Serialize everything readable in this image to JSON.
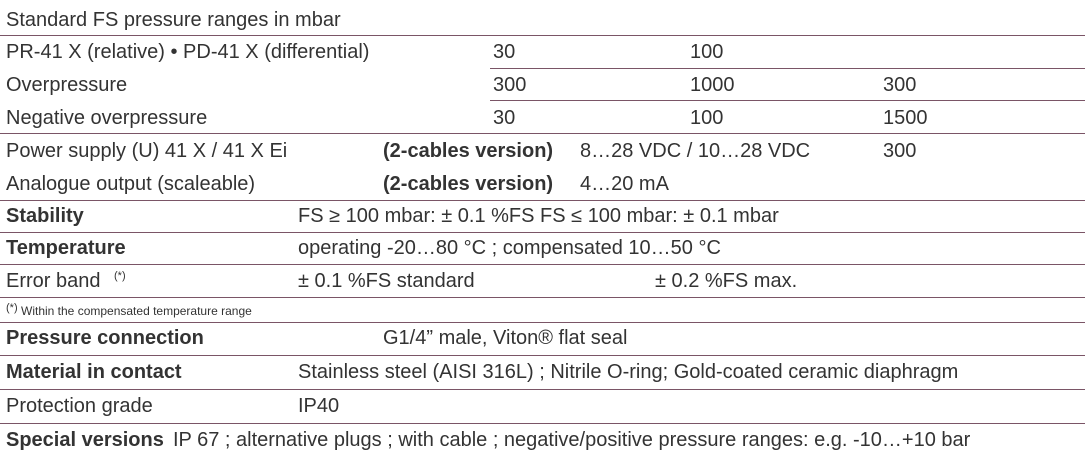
{
  "title": "Standard FS pressure ranges in mbar",
  "ranges": [
    {
      "label": "PR-41 X (relative) • PD-41 X (differential)",
      "cells": [
        "30",
        "100"
      ]
    },
    {
      "label": "Overpressure",
      "cells": [
        "300",
        "1000",
        "300"
      ]
    },
    {
      "label": "Negative overpressure",
      "cells": [
        "30",
        "100",
        "1500"
      ]
    }
  ],
  "power": {
    "label": "Power supply (U) 41 X / 41 X Ei",
    "note": "(2-cables version)",
    "value": "8…28 VDC / 10…28 VDC",
    "extra": "300"
  },
  "output": {
    "label": "Analogue output (scaleable)",
    "note": "(2-cables version)",
    "value": "4…20 mA"
  },
  "stability": {
    "label": "Stability",
    "value": "FS ≥ 100 mbar: ± 0.1 %FS FS ≤ 100 mbar: ± 0.1 mbar"
  },
  "temperature": {
    "label": "Temperature",
    "value": "operating -20…80 °C ; compensated 10…50 °C"
  },
  "error_band": {
    "label": "Error band",
    "mark": "(*)",
    "standard": "± 0.1 %FS standard",
    "max": "± 0.2 %FS max."
  },
  "footnote": {
    "mark": "(*)",
    "text": "Within the compensated temperature range"
  },
  "connection": {
    "label": "Pressure connection",
    "value": "G1/4” male, Viton® flat seal"
  },
  "material": {
    "label": "Material in contact",
    "value": "Stainless steel (AISI 316L) ; Nitrile O-ring; Gold-coated ceramic diaphragm"
  },
  "protection": {
    "label": "Protection grade",
    "value": "IP40"
  },
  "special": {
    "label": "Special versions",
    "value": "IP 67 ; alternative plugs ; with cable ; negative/positive pressure ranges: e.g. -10…+10 bar"
  }
}
